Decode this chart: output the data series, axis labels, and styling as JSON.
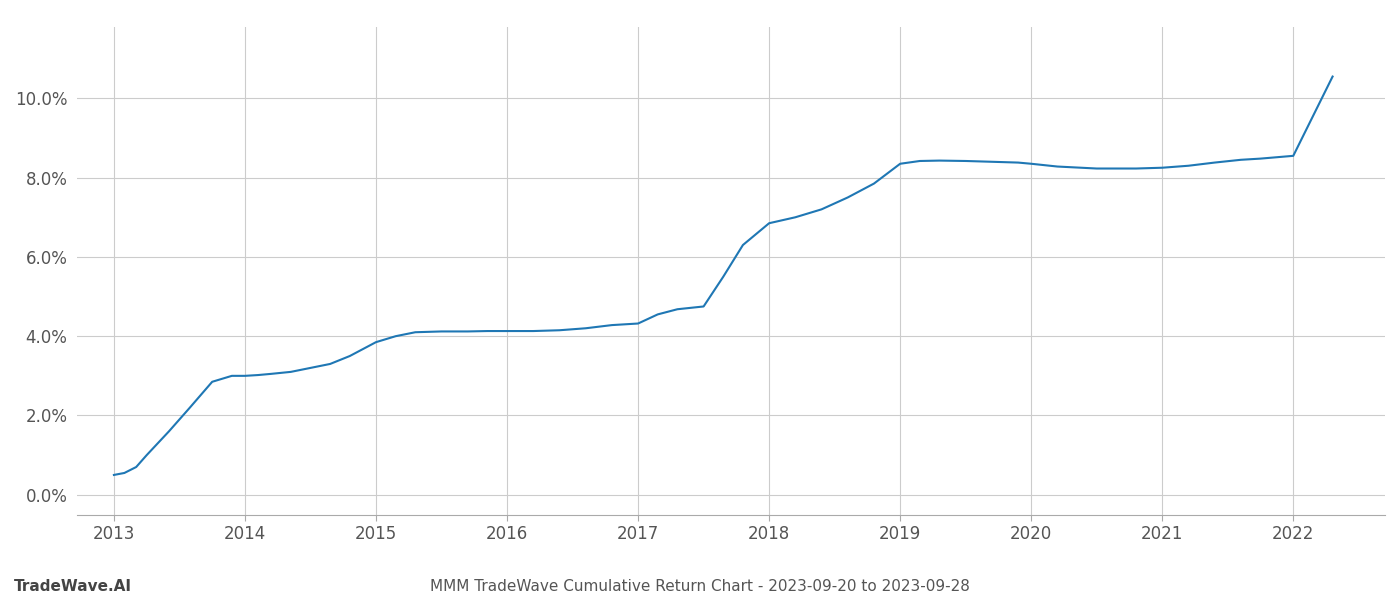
{
  "x_data": [
    2013.0,
    2013.08,
    2013.17,
    2013.25,
    2013.42,
    2013.58,
    2013.75,
    2013.9,
    2014.0,
    2014.1,
    2014.2,
    2014.35,
    2014.5,
    2014.65,
    2014.8,
    2015.0,
    2015.15,
    2015.3,
    2015.5,
    2015.7,
    2015.85,
    2016.0,
    2016.2,
    2016.4,
    2016.6,
    2016.8,
    2017.0,
    2017.15,
    2017.3,
    2017.5,
    2017.65,
    2017.8,
    2018.0,
    2018.2,
    2018.4,
    2018.6,
    2018.8,
    2019.0,
    2019.15,
    2019.3,
    2019.5,
    2019.7,
    2019.9,
    2020.0,
    2020.2,
    2020.5,
    2020.8,
    2021.0,
    2021.2,
    2021.4,
    2021.6,
    2021.75,
    2022.0,
    2022.3
  ],
  "y_data": [
    0.5,
    0.55,
    0.7,
    1.0,
    1.6,
    2.2,
    2.85,
    3.0,
    3.0,
    3.02,
    3.05,
    3.1,
    3.2,
    3.3,
    3.5,
    3.85,
    4.0,
    4.1,
    4.12,
    4.12,
    4.13,
    4.13,
    4.13,
    4.15,
    4.2,
    4.28,
    4.32,
    4.55,
    4.68,
    4.75,
    5.5,
    6.3,
    6.85,
    7.0,
    7.2,
    7.5,
    7.85,
    8.35,
    8.42,
    8.43,
    8.42,
    8.4,
    8.38,
    8.35,
    8.28,
    8.23,
    8.23,
    8.25,
    8.3,
    8.38,
    8.45,
    8.48,
    8.55,
    10.55
  ],
  "line_color": "#1f77b4",
  "line_width": 1.5,
  "background_color": "#ffffff",
  "grid_color": "#cccccc",
  "title": "MMM TradeWave Cumulative Return Chart - 2023-09-20 to 2023-09-28",
  "watermark": "TradeWave.AI",
  "x_ticks": [
    2013,
    2014,
    2015,
    2016,
    2017,
    2018,
    2019,
    2020,
    2021,
    2022
  ],
  "y_tick_vals": [
    0.0,
    2.0,
    4.0,
    6.0,
    8.0,
    10.0
  ],
  "ylim": [
    -0.5,
    11.8
  ],
  "xlim": [
    2012.72,
    2022.7
  ],
  "title_fontsize": 11,
  "watermark_fontsize": 11,
  "tick_fontsize": 12
}
